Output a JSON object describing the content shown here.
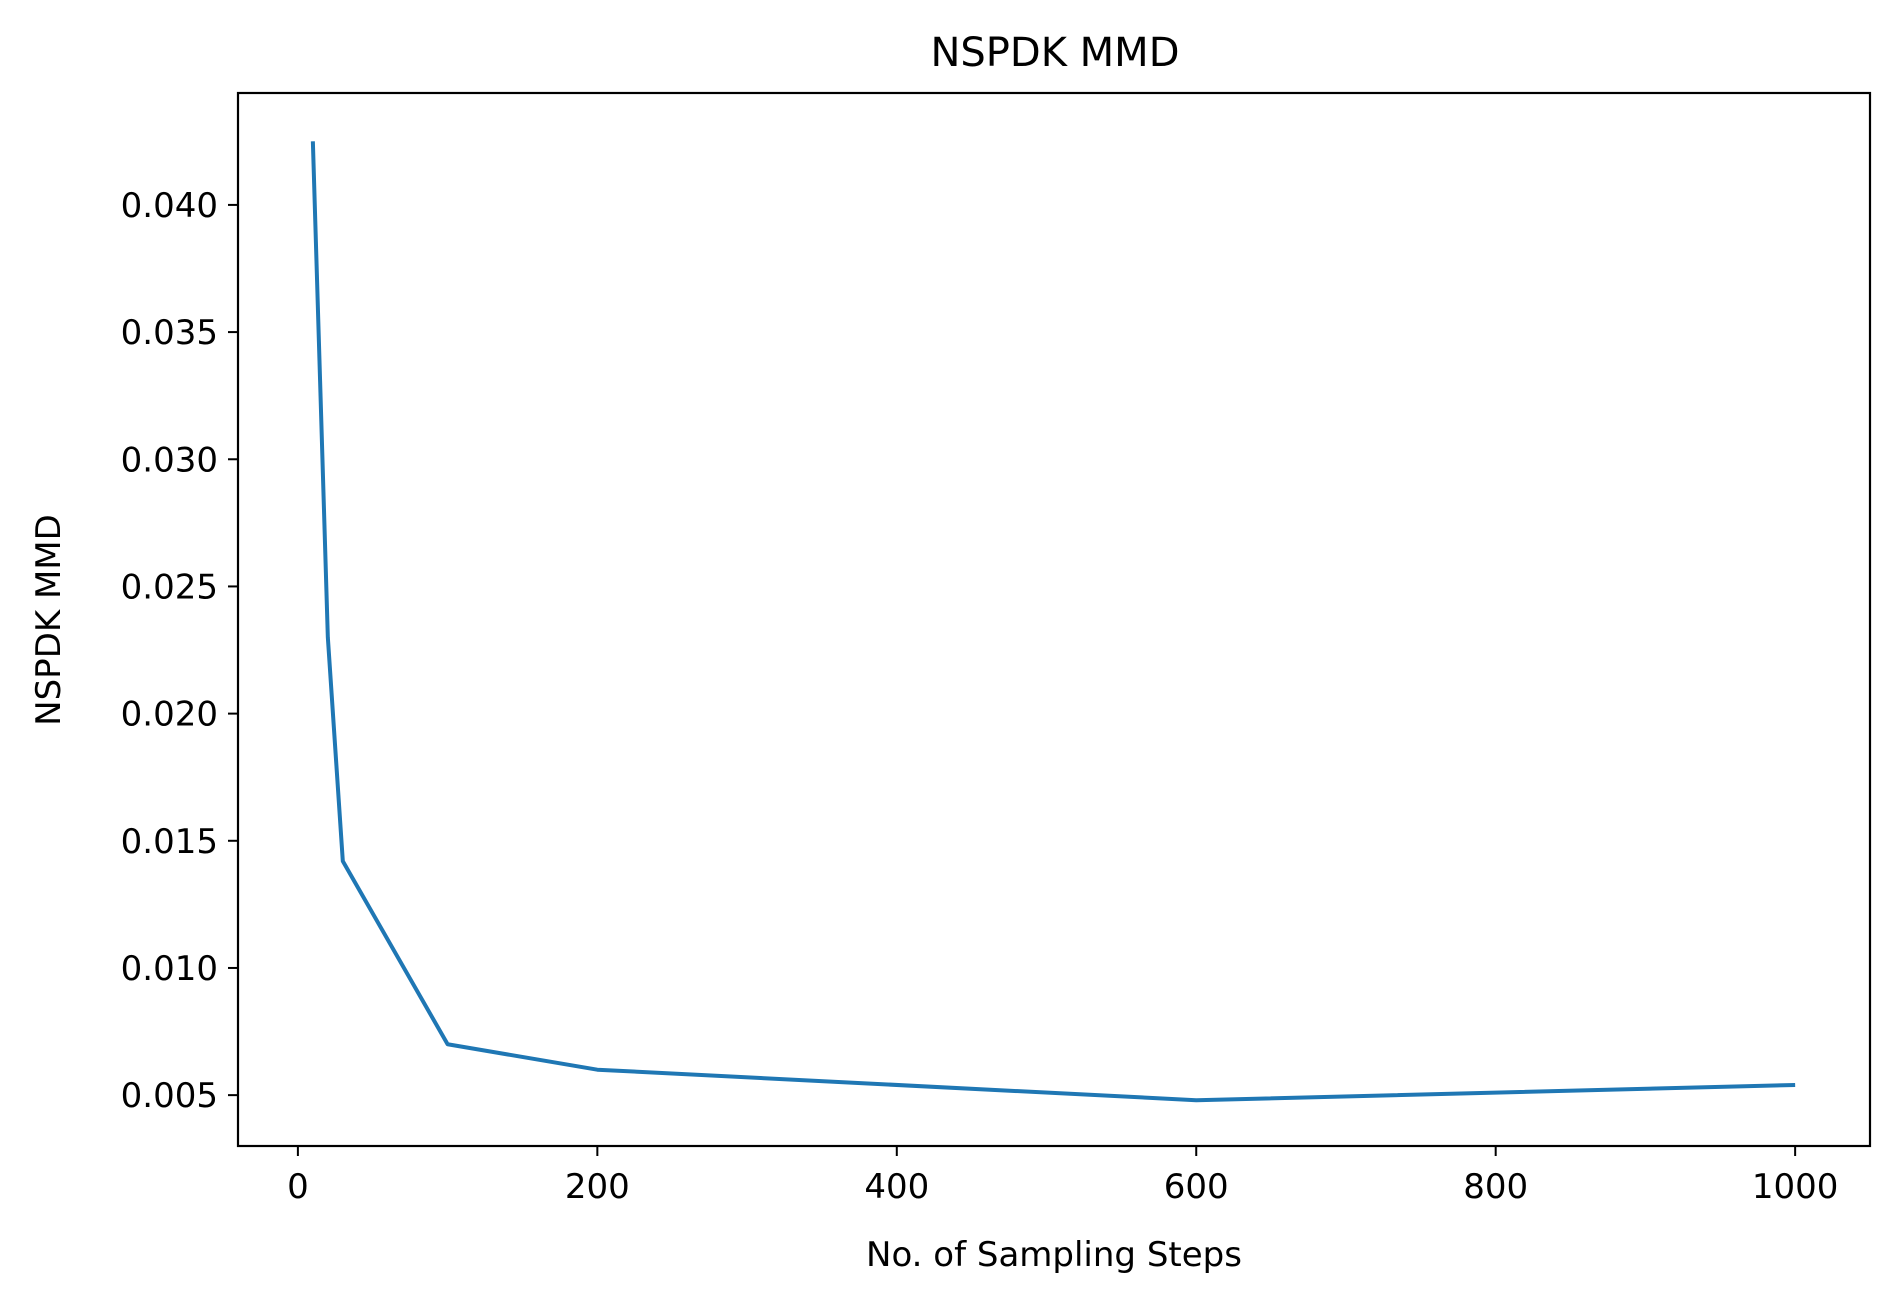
{
  "chart_data": {
    "type": "line",
    "title": "NSPDK MMD",
    "xlabel": "No. of Sampling Steps",
    "ylabel": "NSPDK MMD",
    "xlim": [
      -40,
      1050
    ],
    "ylim": [
      0.003,
      0.0444
    ],
    "x_ticks": [
      0,
      200,
      400,
      600,
      800,
      1000
    ],
    "x_tick_labels": [
      "0",
      "200",
      "400",
      "600",
      "800",
      "1000"
    ],
    "y_ticks": [
      0.005,
      0.01,
      0.015,
      0.02,
      0.025,
      0.03,
      0.035,
      0.04
    ],
    "y_tick_labels": [
      "0.005",
      "0.010",
      "0.015",
      "0.020",
      "0.025",
      "0.030",
      "0.035",
      "0.040"
    ],
    "grid": false,
    "series": [
      {
        "color": "#1f77b4",
        "x": [
          10,
          20,
          30,
          100,
          200,
          600,
          1000
        ],
        "y": [
          0.0425,
          0.023,
          0.0142,
          0.007,
          0.006,
          0.0048,
          0.0054
        ]
      }
    ]
  }
}
